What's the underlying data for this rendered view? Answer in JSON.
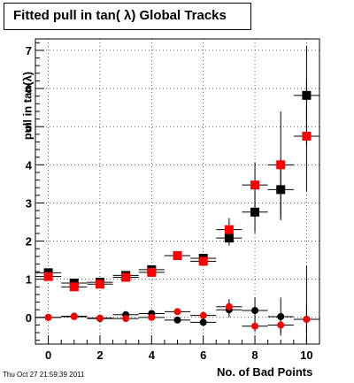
{
  "chart_data": {
    "type": "scatter",
    "title": "Fitted pull in tan( λ)  Global Tracks",
    "xlabel": "No. of Bad Points",
    "ylabel": "pull in tan(λ)",
    "xlim": [
      -0.5,
      10.5
    ],
    "ylim": [
      -0.7,
      7.3
    ],
    "x_ticks": [
      0,
      2,
      4,
      6,
      8,
      10
    ],
    "y_ticks": [
      0,
      1,
      2,
      3,
      4,
      5,
      6,
      7
    ],
    "grid": true,
    "series": [
      {
        "marker": "square",
        "color": "#000000",
        "x": [
          0,
          1,
          2,
          3,
          4,
          5,
          6,
          7,
          8,
          9,
          10
        ],
        "y": [
          1.17,
          0.9,
          0.92,
          1.1,
          1.25,
          1.62,
          1.55,
          2.08,
          2.76,
          3.35,
          5.82
        ],
        "yerr": [
          0.05,
          0.05,
          0.05,
          0.05,
          0.08,
          0.05,
          0.08,
          0.2,
          0.55,
          0.8,
          1.3
        ]
      },
      {
        "marker": "square",
        "color": "#ff0000",
        "x": [
          0,
          1,
          2,
          3,
          4,
          5,
          6,
          7,
          8,
          9,
          10
        ],
        "y": [
          1.07,
          0.8,
          0.87,
          1.05,
          1.18,
          1.62,
          1.47,
          2.3,
          3.47,
          4.0,
          4.75
        ],
        "yerr": [
          0.05,
          0.05,
          0.05,
          0.05,
          0.08,
          0.05,
          0.08,
          0.3,
          0.6,
          1.4,
          1.45
        ]
      },
      {
        "marker": "circle",
        "color": "#000000",
        "x": [
          0,
          1,
          2,
          3,
          4,
          5,
          6,
          7,
          8,
          9,
          10
        ],
        "y": [
          0.0,
          0.03,
          -0.03,
          0.07,
          0.1,
          -0.07,
          -0.13,
          0.2,
          0.18,
          0.02,
          -0.05
        ],
        "yerr": [
          0.03,
          0.03,
          0.03,
          0.05,
          0.08,
          0.05,
          0.08,
          0.2,
          0.35,
          0.5,
          1.4
        ]
      },
      {
        "marker": "circle",
        "color": "#ff0000",
        "x": [
          0,
          1,
          2,
          3,
          4,
          5,
          6,
          7,
          8,
          9,
          10
        ],
        "y": [
          0.0,
          0.02,
          -0.02,
          -0.03,
          0.0,
          0.15,
          0.05,
          0.28,
          -0.23,
          -0.2,
          -0.05
        ],
        "yerr": [
          0.03,
          0.03,
          0.03,
          0.05,
          0.08,
          0.05,
          0.08,
          0.2,
          0.15,
          0.2,
          0.35
        ]
      }
    ]
  },
  "footer": {
    "timestamp": "Thu Oct 27 21:59:39 2011"
  }
}
